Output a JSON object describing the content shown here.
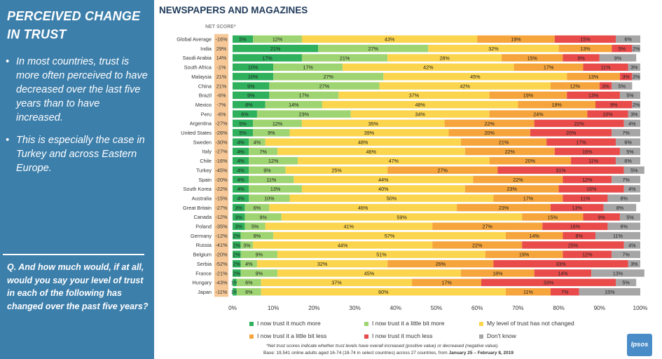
{
  "sidebar": {
    "title": "PERCEIVED CHANGE IN TRUST",
    "bullets": [
      "In most countries, trust is more often perceived to have decreased over the last five years than to have increased.",
      "This is especially the case in Turkey and across Eastern Europe."
    ],
    "question": "Q. And how much would, if at all, would you say your level of trust in each of the following has changed over the past five years?"
  },
  "chart_title": "NEWSPAPERS AND MAGAZINES",
  "net_score_header": "NET SCORE*",
  "footnote": "*Net trust scores indicate whether trust levels have overall increased (positive value) or decreased (negative value).",
  "base_note": {
    "prefix": "Base: 19,541 online adults aged 16-74 (18-74 in select countries) across 27 countries, from ",
    "dates": "January 25 – February 8, 2019"
  },
  "logo_text": "Ipsos",
  "colors": {
    "sidebar_bg": "#3d7fab",
    "much_more": "#2eb05c",
    "little_more": "#9fd472",
    "not_changed": "#fcd54e",
    "little_less": "#f6a53c",
    "much_less": "#e94b4b",
    "dont_know": "#a6a6a6",
    "net_box": "#f6c897"
  },
  "chart_data": {
    "type": "bar",
    "orientation": "horizontal",
    "stacked": true,
    "xlim": [
      0,
      100
    ],
    "x_ticks": [
      "0%",
      "10%",
      "20%",
      "30%",
      "40%",
      "50%",
      "60%",
      "70%",
      "80%",
      "90%",
      "100%"
    ],
    "categories": [
      "Global Average",
      "India",
      "Saudi Arabia",
      "South Africa",
      "Malaysia",
      "China",
      "Brazil",
      "Mexico",
      "Peru",
      "Argentina",
      "United States",
      "Sweden",
      "Italy",
      "Chile",
      "Turkey",
      "Spain",
      "South Korea",
      "Australia",
      "Great Britain",
      "Canada",
      "Poland",
      "Germany",
      "Russia",
      "Belgium",
      "Serbia",
      "France",
      "Hungary",
      "Japan"
    ],
    "net_scores": [
      "-16%",
      "29%",
      "14%",
      "-1%",
      "21%",
      "21%",
      "-6%",
      "-7%",
      "-6%",
      "-27%",
      "-26%",
      "-30%",
      "-27%",
      "-16%",
      "-45%",
      "-20%",
      "-22%",
      "-15%",
      "-27%",
      "-12%",
      "-35%",
      "-12%",
      "-41%",
      "-20%",
      "-52%",
      "-21%",
      "-43%",
      "-11%"
    ],
    "series": [
      {
        "name": "I now trust it much more",
        "color_key": "much_more",
        "values": [
          5,
          21,
          17,
          10,
          10,
          9,
          9,
          8,
          6,
          5,
          5,
          4,
          4,
          4,
          4,
          4,
          4,
          4,
          3,
          3,
          3,
          2,
          2,
          2,
          2,
          2,
          1,
          1
        ]
      },
      {
        "name": "I now trust it a little bit more",
        "color_key": "little_more",
        "values": [
          12,
          27,
          21,
          17,
          27,
          27,
          17,
          14,
          23,
          12,
          9,
          4,
          7,
          12,
          9,
          11,
          13,
          10,
          6,
          9,
          5,
          8,
          3,
          9,
          4,
          9,
          6,
          6
        ]
      },
      {
        "name": "My level of trust has not changed",
        "color_key": "not_changed",
        "values": [
          43,
          32,
          28,
          42,
          45,
          42,
          37,
          48,
          34,
          35,
          39,
          48,
          46,
          47,
          25,
          44,
          40,
          50,
          46,
          59,
          41,
          57,
          44,
          51,
          32,
          45,
          37,
          60
        ]
      },
      {
        "name": "I now trust it a little bit less",
        "color_key": "little_less",
        "values": [
          19,
          13,
          15,
          17,
          13,
          12,
          19,
          19,
          24,
          22,
          20,
          21,
          22,
          20,
          27,
          22,
          23,
          17,
          23,
          15,
          27,
          14,
          22,
          19,
          26,
          18,
          17,
          11
        ]
      },
      {
        "name": "I now trust it much less",
        "color_key": "much_less",
        "values": [
          15,
          5,
          9,
          11,
          3,
          3,
          13,
          9,
          10,
          22,
          20,
          17,
          16,
          11,
          31,
          12,
          16,
          11,
          13,
          9,
          16,
          8,
          25,
          12,
          33,
          14,
          33,
          7
        ]
      },
      {
        "name": "Don't know",
        "color_key": "dont_know",
        "values": [
          6,
          2,
          9,
          3,
          2,
          5,
          5,
          2,
          3,
          4,
          7,
          6,
          5,
          6,
          5,
          7,
          4,
          8,
          8,
          5,
          8,
          11,
          4,
          7,
          3,
          13,
          5,
          15
        ]
      }
    ]
  }
}
